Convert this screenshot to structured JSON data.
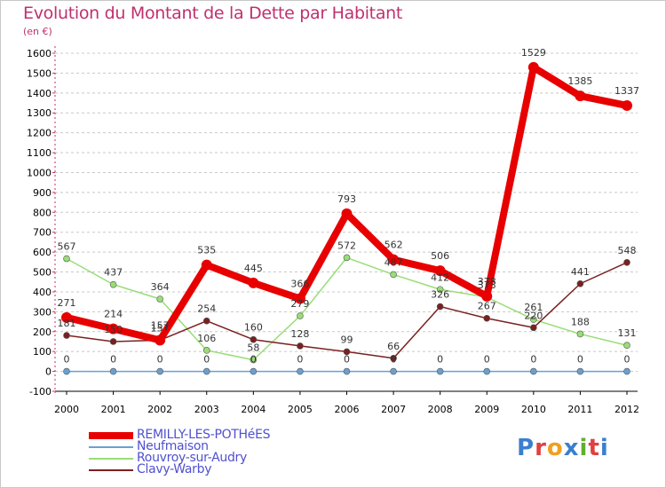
{
  "title": "Evolution du Montant de la Dette par Habitant",
  "unit": "(en €)",
  "logo": "Proxiti",
  "colors": {
    "title": "#c0306e",
    "legend_text": "#5050d0",
    "grid": "#c8c8c8"
  },
  "chart_data": {
    "type": "line",
    "x": [
      "2000",
      "2001",
      "2002",
      "2003",
      "2004",
      "2005",
      "2006",
      "2007",
      "2008",
      "2009",
      "2010",
      "2011",
      "2012"
    ],
    "ylim": [
      -100,
      1600
    ],
    "yticks": [
      "-100",
      "0",
      "100",
      "200",
      "300",
      "400",
      "500",
      "600",
      "700",
      "800",
      "900",
      "1000",
      "1100",
      "1200",
      "1300",
      "1400",
      "1500",
      "1600"
    ],
    "grid": "horizontal dashed",
    "legend_position": "bottom-left",
    "series": [
      {
        "name": "REMILLY-LES-POTHéES",
        "color": "#e80000",
        "values": [
          271,
          214,
          157,
          535,
          445,
          366,
          793,
          562,
          506,
          378,
          1529,
          1385,
          1337
        ],
        "labels": [
          "271",
          "214",
          "157",
          "535",
          "445",
          "366",
          "793",
          "562",
          "506",
          "378",
          "1529",
          "1385",
          "1337"
        ]
      },
      {
        "name": "Neufmaison",
        "color": "#6aa0d0",
        "values": [
          0,
          0,
          0,
          0,
          0,
          0,
          0,
          0,
          0,
          0,
          0,
          0,
          0
        ],
        "labels": [
          "0",
          "0",
          "0",
          "0",
          "0",
          "0",
          "0",
          "0",
          "0",
          "0",
          "0",
          "0",
          "0"
        ]
      },
      {
        "name": "Rouvroy-sur-Audry",
        "color": "#99dd77",
        "values": [
          567,
          437,
          364,
          106,
          58,
          279,
          572,
          487,
          412,
          373,
          261,
          188,
          131
        ],
        "labels": [
          "567",
          "437",
          "364",
          "106",
          "58",
          "279",
          "572",
          "487",
          "412",
          "373",
          "261",
          "188",
          "131"
        ]
      },
      {
        "name": "Clavy-Warby",
        "color": "#7a2020",
        "values": [
          181,
          150,
          157,
          254,
          160,
          128,
          99,
          66,
          326,
          267,
          220,
          441,
          548
        ],
        "labels": [
          "181",
          "150",
          "157",
          "254",
          "160",
          "128",
          "99",
          "66",
          "326",
          "267",
          "220",
          "441",
          "548"
        ]
      }
    ]
  }
}
